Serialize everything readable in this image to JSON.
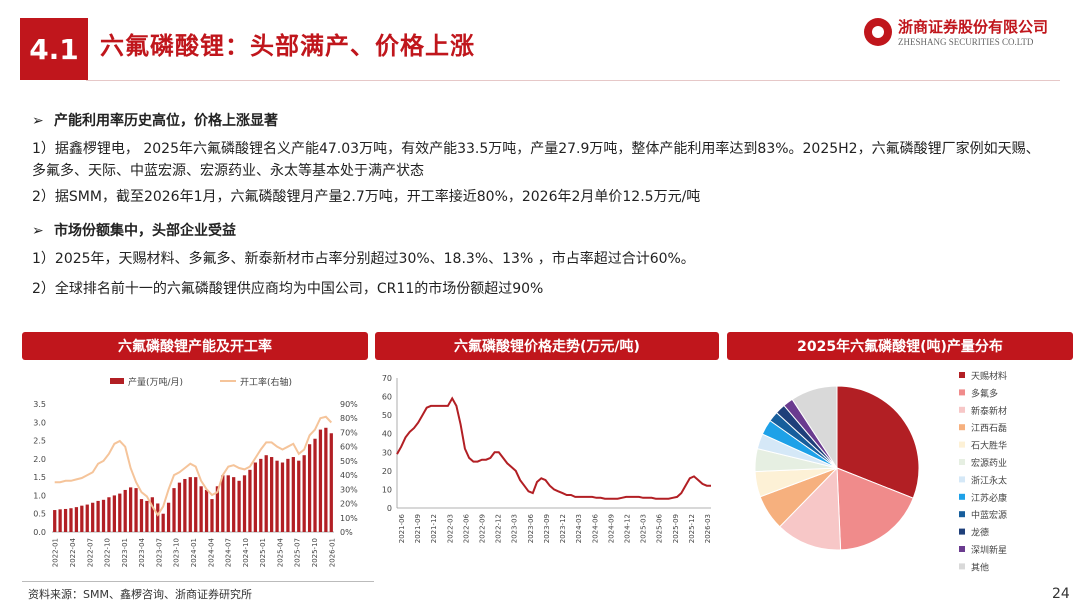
{
  "header": {
    "section_number": "4.1",
    "title": "六氟磷酸锂：头部满产、价格上涨",
    "logo_cn": "浙商证券股份有限公司",
    "logo_en": "ZHESHANG SECURITIES CO.LTD"
  },
  "body": {
    "bullet1": "产能利用率历史高位，价格上涨显著",
    "para1": "1）据鑫椤锂电， 2025年六氟磷酸锂名义产能47.03万吨，有效产能33.5万吨，产量27.9万吨，整体产能利用率达到83%。2025H2，六氟磷酸锂厂家例如天赐、多氟多、天际、中蓝宏源、宏源药业、永太等基本处于满产状态",
    "para2": "2）据SMM，截至2026年1月，六氟磷酸锂月产量2.7万吨，开工率接近80%，2026年2月单价12.5万元/吨",
    "bullet2": "市场份额集中，头部企业受益",
    "para3": "1）2025年，天赐材料、多氟多、新泰新材市占率分别超过30%、18.3%、13% ，市占率超过合计60%。",
    "para4": "2）全球排名前十一的六氟磷酸锂供应商均为中国公司，CR11的市场份额超过90%",
    "arrow": "➢"
  },
  "panels": {
    "chart1_title": "六氟磷酸锂产能及开工率",
    "chart2_title": "六氟磷酸锂价格走势(万元/吨)",
    "chart3_title": "2025年六氟磷酸锂(吨)产量分布"
  },
  "footer": {
    "source": "资料来源：SMM、鑫椤咨询、浙商证券研究所",
    "page": "24"
  },
  "colors": {
    "brand_red": "#c0161c",
    "bar": "#b21f24",
    "rate_line": "#f5c49a",
    "price_line": "#b21f24"
  },
  "chart_data": [
    {
      "type": "bar",
      "title": "六氟磷酸锂产能及开工率",
      "x_ticks": [
        "2022-01",
        "2022-04",
        "2022-07",
        "2022-10",
        "2023-01",
        "2023-04",
        "2023-07",
        "2023-10",
        "2024-01",
        "2024-04",
        "2024-07",
        "2024-10",
        "2025-01",
        "2025-04",
        "2025-07",
        "2025-10",
        "2026-01"
      ],
      "ylim_left": [
        0,
        3.5
      ],
      "left_ticks": [
        "0.0",
        "0.5",
        "1.0",
        "1.5",
        "2.0",
        "2.5",
        "3.0",
        "3.5"
      ],
      "ylim_right": [
        0,
        0.9
      ],
      "right_ticks": [
        "0%",
        "10%",
        "20%",
        "30%",
        "40%",
        "50%",
        "60%",
        "70%",
        "80%",
        "90%"
      ],
      "grid": false,
      "legend_position": "top",
      "series": [
        {
          "name": "产量(万吨/月)",
          "kind": "bar",
          "values": [
            0.6,
            0.62,
            0.63,
            0.65,
            0.68,
            0.72,
            0.75,
            0.8,
            0.85,
            0.88,
            0.95,
            1.0,
            1.05,
            1.15,
            1.22,
            1.2,
            0.9,
            0.85,
            0.95,
            0.78,
            0.5,
            0.8,
            1.2,
            1.35,
            1.45,
            1.5,
            1.5,
            1.25,
            1.15,
            0.9,
            1.25,
            1.55,
            1.55,
            1.5,
            1.4,
            1.55,
            1.7,
            1.9,
            2.0,
            2.1,
            2.05,
            1.95,
            1.9,
            2.0,
            2.05,
            1.95,
            2.1,
            2.4,
            2.55,
            2.8,
            2.85,
            2.7
          ]
        },
        {
          "name": "开工率(右轴)",
          "kind": "line",
          "values": [
            0.35,
            0.35,
            0.36,
            0.36,
            0.37,
            0.38,
            0.4,
            0.42,
            0.48,
            0.5,
            0.55,
            0.62,
            0.64,
            0.6,
            0.45,
            0.35,
            0.28,
            0.25,
            0.18,
            0.12,
            0.18,
            0.3,
            0.4,
            0.42,
            0.45,
            0.48,
            0.46,
            0.36,
            0.3,
            0.26,
            0.28,
            0.4,
            0.46,
            0.47,
            0.45,
            0.44,
            0.46,
            0.52,
            0.58,
            0.63,
            0.63,
            0.6,
            0.58,
            0.6,
            0.62,
            0.55,
            0.58,
            0.68,
            0.72,
            0.8,
            0.81,
            0.77
          ]
        }
      ]
    },
    {
      "type": "line",
      "title": "六氟磷酸锂价格走势(万元/吨)",
      "x_ticks": [
        "2021-06",
        "2021-09",
        "2021-12",
        "2022-03",
        "2022-06",
        "2022-09",
        "2022-12",
        "2023-03",
        "2023-06",
        "2023-09",
        "2023-12",
        "2024-03",
        "2024-06",
        "2024-09",
        "2024-12",
        "2025-03",
        "2025-06",
        "2025-09",
        "2025-12",
        "2026-03"
      ],
      "ylim": [
        0,
        70
      ],
      "y_ticks": [
        "0",
        "10",
        "20",
        "30",
        "40",
        "50",
        "60",
        "70"
      ],
      "grid": false,
      "series": [
        {
          "name": "",
          "values": [
            29,
            33,
            38,
            41,
            43,
            46,
            50,
            54,
            55,
            55,
            55,
            55,
            55,
            59,
            55,
            45,
            32,
            27,
            25,
            25,
            26,
            26,
            27,
            30,
            30,
            27,
            24,
            22,
            20,
            15,
            12,
            9,
            8,
            14,
            16,
            15,
            12,
            10,
            9,
            8,
            7,
            7,
            6,
            6,
            6,
            6,
            6,
            5.5,
            5.5,
            5,
            5,
            5,
            5,
            5.5,
            6,
            6,
            6,
            6,
            5.5,
            5.5,
            5.5,
            5,
            5,
            5,
            5,
            5.5,
            6,
            8,
            12,
            16,
            17,
            15,
            13,
            12,
            12
          ]
        }
      ]
    },
    {
      "type": "pie",
      "title": "2025年六氟磷酸锂(吨)产量分布",
      "legend_position": "right",
      "labels": [
        "天赐材料",
        "多氟多",
        "新泰新材",
        "江西石磊",
        "石大胜华",
        "宏源药业",
        "浙江永太",
        "江苏必康",
        "中蓝宏源",
        "龙德",
        "深圳新星",
        "其他"
      ],
      "values": [
        31,
        18.3,
        13,
        7,
        5,
        4.5,
        3,
        3,
        2,
        2,
        2,
        9.2
      ],
      "colors": [
        "#b21f24",
        "#f08b8b",
        "#f7c7c7",
        "#f6b07e",
        "#fdf1d6",
        "#e6efe2",
        "#d5e8f7",
        "#1ea1e8",
        "#175e9c",
        "#1f3f7a",
        "#6a3b8f",
        "#d9d9d9"
      ]
    }
  ]
}
